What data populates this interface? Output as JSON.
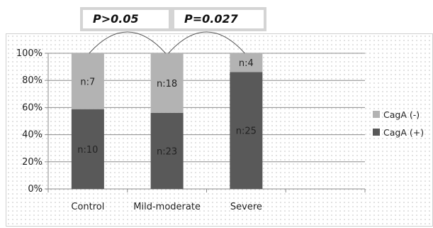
{
  "annotations": {
    "p1": "P>0.05",
    "p2": "P=0.027"
  },
  "colors": {
    "cagA_neg": "#b3b3b3",
    "cagA_pos": "#595959"
  },
  "chart_data": {
    "type": "bar",
    "stacked": true,
    "percent": true,
    "categories": [
      "Control",
      "Mild-moderate",
      "Severe"
    ],
    "series": [
      {
        "name": "CagA (+)",
        "counts": [
          10,
          23,
          25
        ],
        "values": [
          58.8,
          56.1,
          86.2
        ]
      },
      {
        "name": "CagA (-)",
        "counts": [
          7,
          18,
          4
        ],
        "values": [
          41.2,
          43.9,
          13.8
        ]
      }
    ],
    "segment_labels": {
      "CagA (+)": [
        "n:10",
        "n:23",
        "n:25"
      ],
      "CagA (-)": [
        "n:7",
        "n:18",
        "n:4"
      ]
    },
    "yticks": [
      "0%",
      "20%",
      "40%",
      "60%",
      "80%",
      "100%"
    ],
    "ylim": [
      0,
      100
    ],
    "grid": true,
    "legend": {
      "position": "right",
      "items": [
        "CagA (-)",
        "CagA (+)"
      ]
    }
  }
}
